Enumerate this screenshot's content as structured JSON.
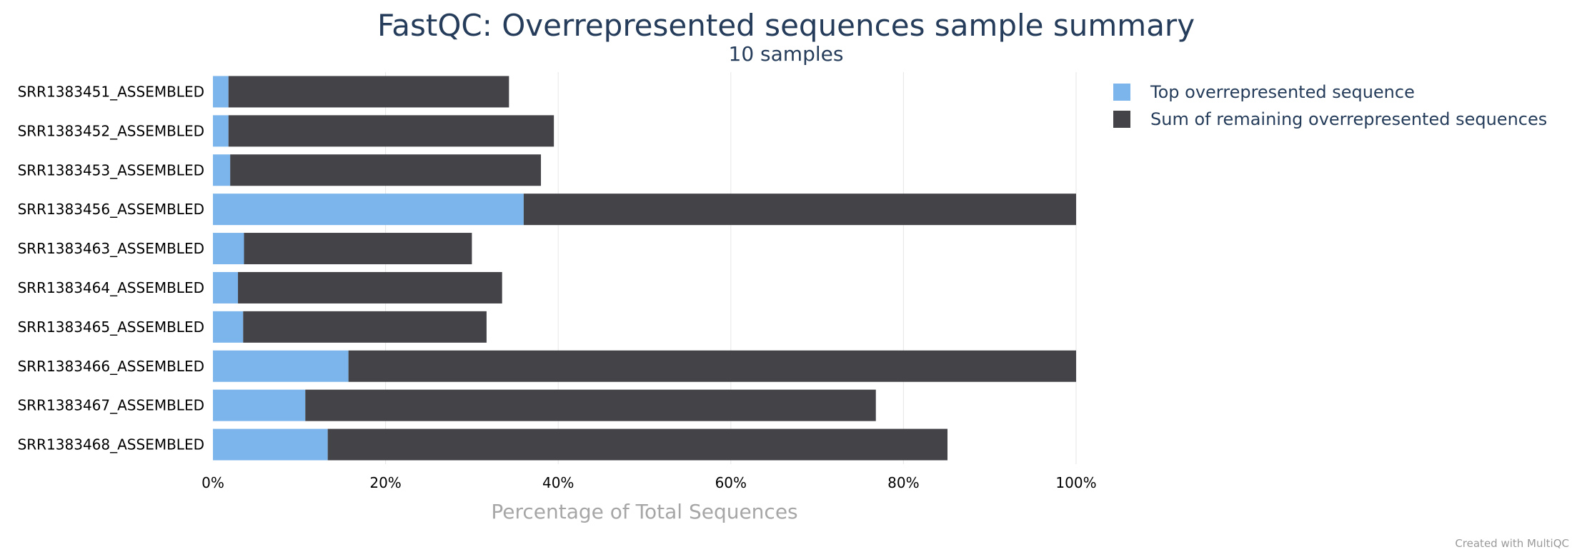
{
  "chart_data": {
    "type": "bar",
    "orientation": "horizontal",
    "stacked": true,
    "title": "FastQC: Overrepresented sequences sample summary",
    "subtitle": "10 samples",
    "xlabel": "Percentage of Total Sequences",
    "ylabel": "",
    "xlim": [
      0,
      100
    ],
    "x_ticks": [
      0,
      20,
      40,
      60,
      80,
      100
    ],
    "x_tick_labels": [
      "0%",
      "20%",
      "40%",
      "60%",
      "80%",
      "100%"
    ],
    "grid": "vertical",
    "legend_position": "top-right",
    "categories": [
      "SRR1383451_ASSEMBLED",
      "SRR1383452_ASSEMBLED",
      "SRR1383453_ASSEMBLED",
      "SRR1383456_ASSEMBLED",
      "SRR1383463_ASSEMBLED",
      "SRR1383464_ASSEMBLED",
      "SRR1383465_ASSEMBLED",
      "SRR1383466_ASSEMBLED",
      "SRR1383467_ASSEMBLED",
      "SRR1383468_ASSEMBLED"
    ],
    "series": [
      {
        "name": "Top overrepresented sequence",
        "color": "#7cb5ec",
        "values": [
          1.8,
          1.8,
          2.0,
          36.0,
          3.6,
          2.9,
          3.5,
          15.7,
          10.7,
          13.3
        ]
      },
      {
        "name": "Sum of remaining overrepresented sequences",
        "color": "#434348",
        "values": [
          32.5,
          37.7,
          36.0,
          64.0,
          26.4,
          30.6,
          28.2,
          84.3,
          66.1,
          71.8
        ]
      }
    ]
  },
  "credit": "Created with MultiQC"
}
